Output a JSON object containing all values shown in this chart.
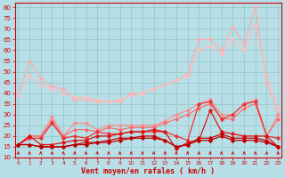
{
  "xlabel": "Vent moyen/en rafales ( km/h )",
  "x_labels": [
    "0",
    "1",
    "2",
    "3",
    "4",
    "5",
    "6",
    "7",
    "8",
    "9",
    "10",
    "11",
    "12",
    "13",
    "14",
    "15",
    "16",
    "17",
    "18",
    "19",
    "20",
    "21",
    "22",
    "23"
  ],
  "y_ticks": [
    10,
    15,
    20,
    25,
    30,
    35,
    40,
    45,
    50,
    55,
    60,
    65,
    70,
    75,
    80
  ],
  "ylim": [
    10,
    82
  ],
  "xlim": [
    -0.3,
    23.3
  ],
  "background_color": "#b8dfe8",
  "grid_color": "#90c8c0",
  "series": [
    {
      "color": "#ffaaaa",
      "linewidth": 0.8,
      "marker": "D",
      "markersize": 2.0,
      "values": [
        39,
        55,
        47,
        43,
        42,
        37,
        37,
        36,
        36,
        36,
        40,
        40,
        42,
        44,
        46,
        49,
        65,
        65,
        60,
        71,
        63,
        80,
        45,
        30
      ]
    },
    {
      "color": "#ffbbbb",
      "linewidth": 0.8,
      "marker": "D",
      "markersize": 2.0,
      "values": [
        39,
        48,
        44,
        42,
        40,
        38,
        38,
        37,
        36,
        37,
        39,
        40,
        42,
        44,
        46,
        48,
        60,
        62,
        58,
        65,
        60,
        72,
        48,
        33
      ]
    },
    {
      "color": "#ff8888",
      "linewidth": 0.8,
      "marker": "D",
      "markersize": 2.0,
      "values": [
        16,
        20,
        20,
        29,
        20,
        26,
        26,
        23,
        25,
        25,
        25,
        25,
        25,
        27,
        30,
        32,
        35,
        37,
        30,
        30,
        35,
        37,
        20,
        30
      ]
    },
    {
      "color": "#ff6666",
      "linewidth": 0.8,
      "marker": "D",
      "markersize": 2.0,
      "values": [
        16,
        20,
        20,
        27,
        20,
        23,
        23,
        22,
        24,
        23,
        24,
        24,
        24,
        26,
        28,
        30,
        33,
        35,
        28,
        28,
        33,
        35,
        20,
        28
      ]
    },
    {
      "color": "#ee3333",
      "linewidth": 0.9,
      "marker": "D",
      "markersize": 2.2,
      "values": [
        16,
        19,
        19,
        26,
        19,
        20,
        19,
        22,
        21,
        21,
        22,
        22,
        22,
        22,
        20,
        18,
        35,
        36,
        28,
        30,
        35,
        36,
        20,
        19
      ]
    },
    {
      "color": "#dd1111",
      "linewidth": 0.9,
      "marker": "D",
      "markersize": 2.2,
      "values": [
        16,
        20,
        16,
        16,
        17,
        18,
        18,
        20,
        20,
        21,
        22,
        22,
        23,
        22,
        14,
        17,
        18,
        32,
        22,
        21,
        20,
        20,
        20,
        15
      ]
    },
    {
      "color": "#cc0000",
      "linewidth": 0.9,
      "marker": "D",
      "markersize": 2.2,
      "values": [
        16,
        16,
        15,
        15,
        15,
        16,
        17,
        17,
        18,
        19,
        19,
        20,
        20,
        18,
        15,
        16,
        19,
        19,
        21,
        19,
        19,
        19,
        18,
        15
      ]
    },
    {
      "color": "#bb0000",
      "linewidth": 0.9,
      "marker": "D",
      "markersize": 2.2,
      "values": [
        16,
        16,
        15,
        15,
        15,
        16,
        16,
        17,
        17,
        18,
        19,
        19,
        19,
        18,
        15,
        16,
        18,
        18,
        20,
        18,
        18,
        18,
        17,
        15
      ]
    }
  ]
}
